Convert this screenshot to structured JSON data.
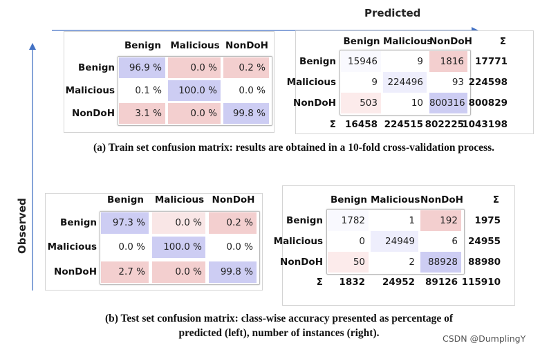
{
  "axes": {
    "predicted_label": "Predicted",
    "observed_label": "Observed",
    "arrow_color": "#4472c4"
  },
  "classes": [
    "Benign",
    "Malicious",
    "NonDoH"
  ],
  "sigma": "Σ",
  "panels": {
    "train_pct": {
      "values": [
        [
          "96.9 %",
          "0.0 %",
          "0.2 %"
        ],
        [
          "0.1 %",
          "100.0 %",
          "0.0 %"
        ],
        [
          "3.1 %",
          "0.0 %",
          "99.8 %"
        ]
      ],
      "colors": [
        [
          "#cdcdf3",
          "#f3cfcf",
          "#f3cfcf"
        ],
        [
          "#ffffff",
          "#cdcdf3",
          "#ffffff"
        ],
        [
          "#f3cfcf",
          "#f3cfcf",
          "#cdcdf3"
        ]
      ]
    },
    "train_count": {
      "values": [
        [
          "15946",
          "9",
          "1816"
        ],
        [
          "9",
          "224496",
          "93"
        ],
        [
          "503",
          "10",
          "800316"
        ]
      ],
      "colors": [
        [
          "#f9f9fe",
          "#ffffff",
          "#f3cfcf"
        ],
        [
          "#ffffff",
          "#eeeefc",
          "#ffffff"
        ],
        [
          "#fcebeb",
          "#ffffff",
          "#cdcdf3"
        ]
      ],
      "row_sums": [
        "17771",
        "224598",
        "800829"
      ],
      "col_sums": [
        "16458",
        "224515",
        "802225"
      ],
      "total": "1043198"
    },
    "test_pct": {
      "values": [
        [
          "97.3 %",
          "0.0 %",
          "0.2 %"
        ],
        [
          "0.0 %",
          "100.0 %",
          "0.0 %"
        ],
        [
          "2.7 %",
          "0.0 %",
          "99.8 %"
        ]
      ],
      "colors": [
        [
          "#cdcdf3",
          "#f9e6e6",
          "#f3cfcf"
        ],
        [
          "#ffffff",
          "#cdcdf3",
          "#ffffff"
        ],
        [
          "#f3cfcf",
          "#f3cfcf",
          "#cdcdf3"
        ]
      ]
    },
    "test_count": {
      "values": [
        [
          "1782",
          "1",
          "192"
        ],
        [
          "0",
          "24949",
          "6"
        ],
        [
          "50",
          "2",
          "88928"
        ]
      ],
      "colors": [
        [
          "#f9f9fe",
          "#ffffff",
          "#f3cfcf"
        ],
        [
          "#ffffff",
          "#eeeefc",
          "#ffffff"
        ],
        [
          "#fcebeb",
          "#ffffff",
          "#cdcdf3"
        ]
      ],
      "row_sums": [
        "1975",
        "24955",
        "88980"
      ],
      "col_sums": [
        "1832",
        "24952",
        "89126"
      ],
      "total": "115910"
    }
  },
  "captions": {
    "a": "(a) Train set confusion matrix: results are obtained in a 10-fold cross-validation process.",
    "b_line1": "(b) Test set confusion matrix: class-wise accuracy presented as percentage of",
    "b_line2": "predicted (left), number of instances (right)."
  },
  "watermark": "CSDN @DumplingY"
}
